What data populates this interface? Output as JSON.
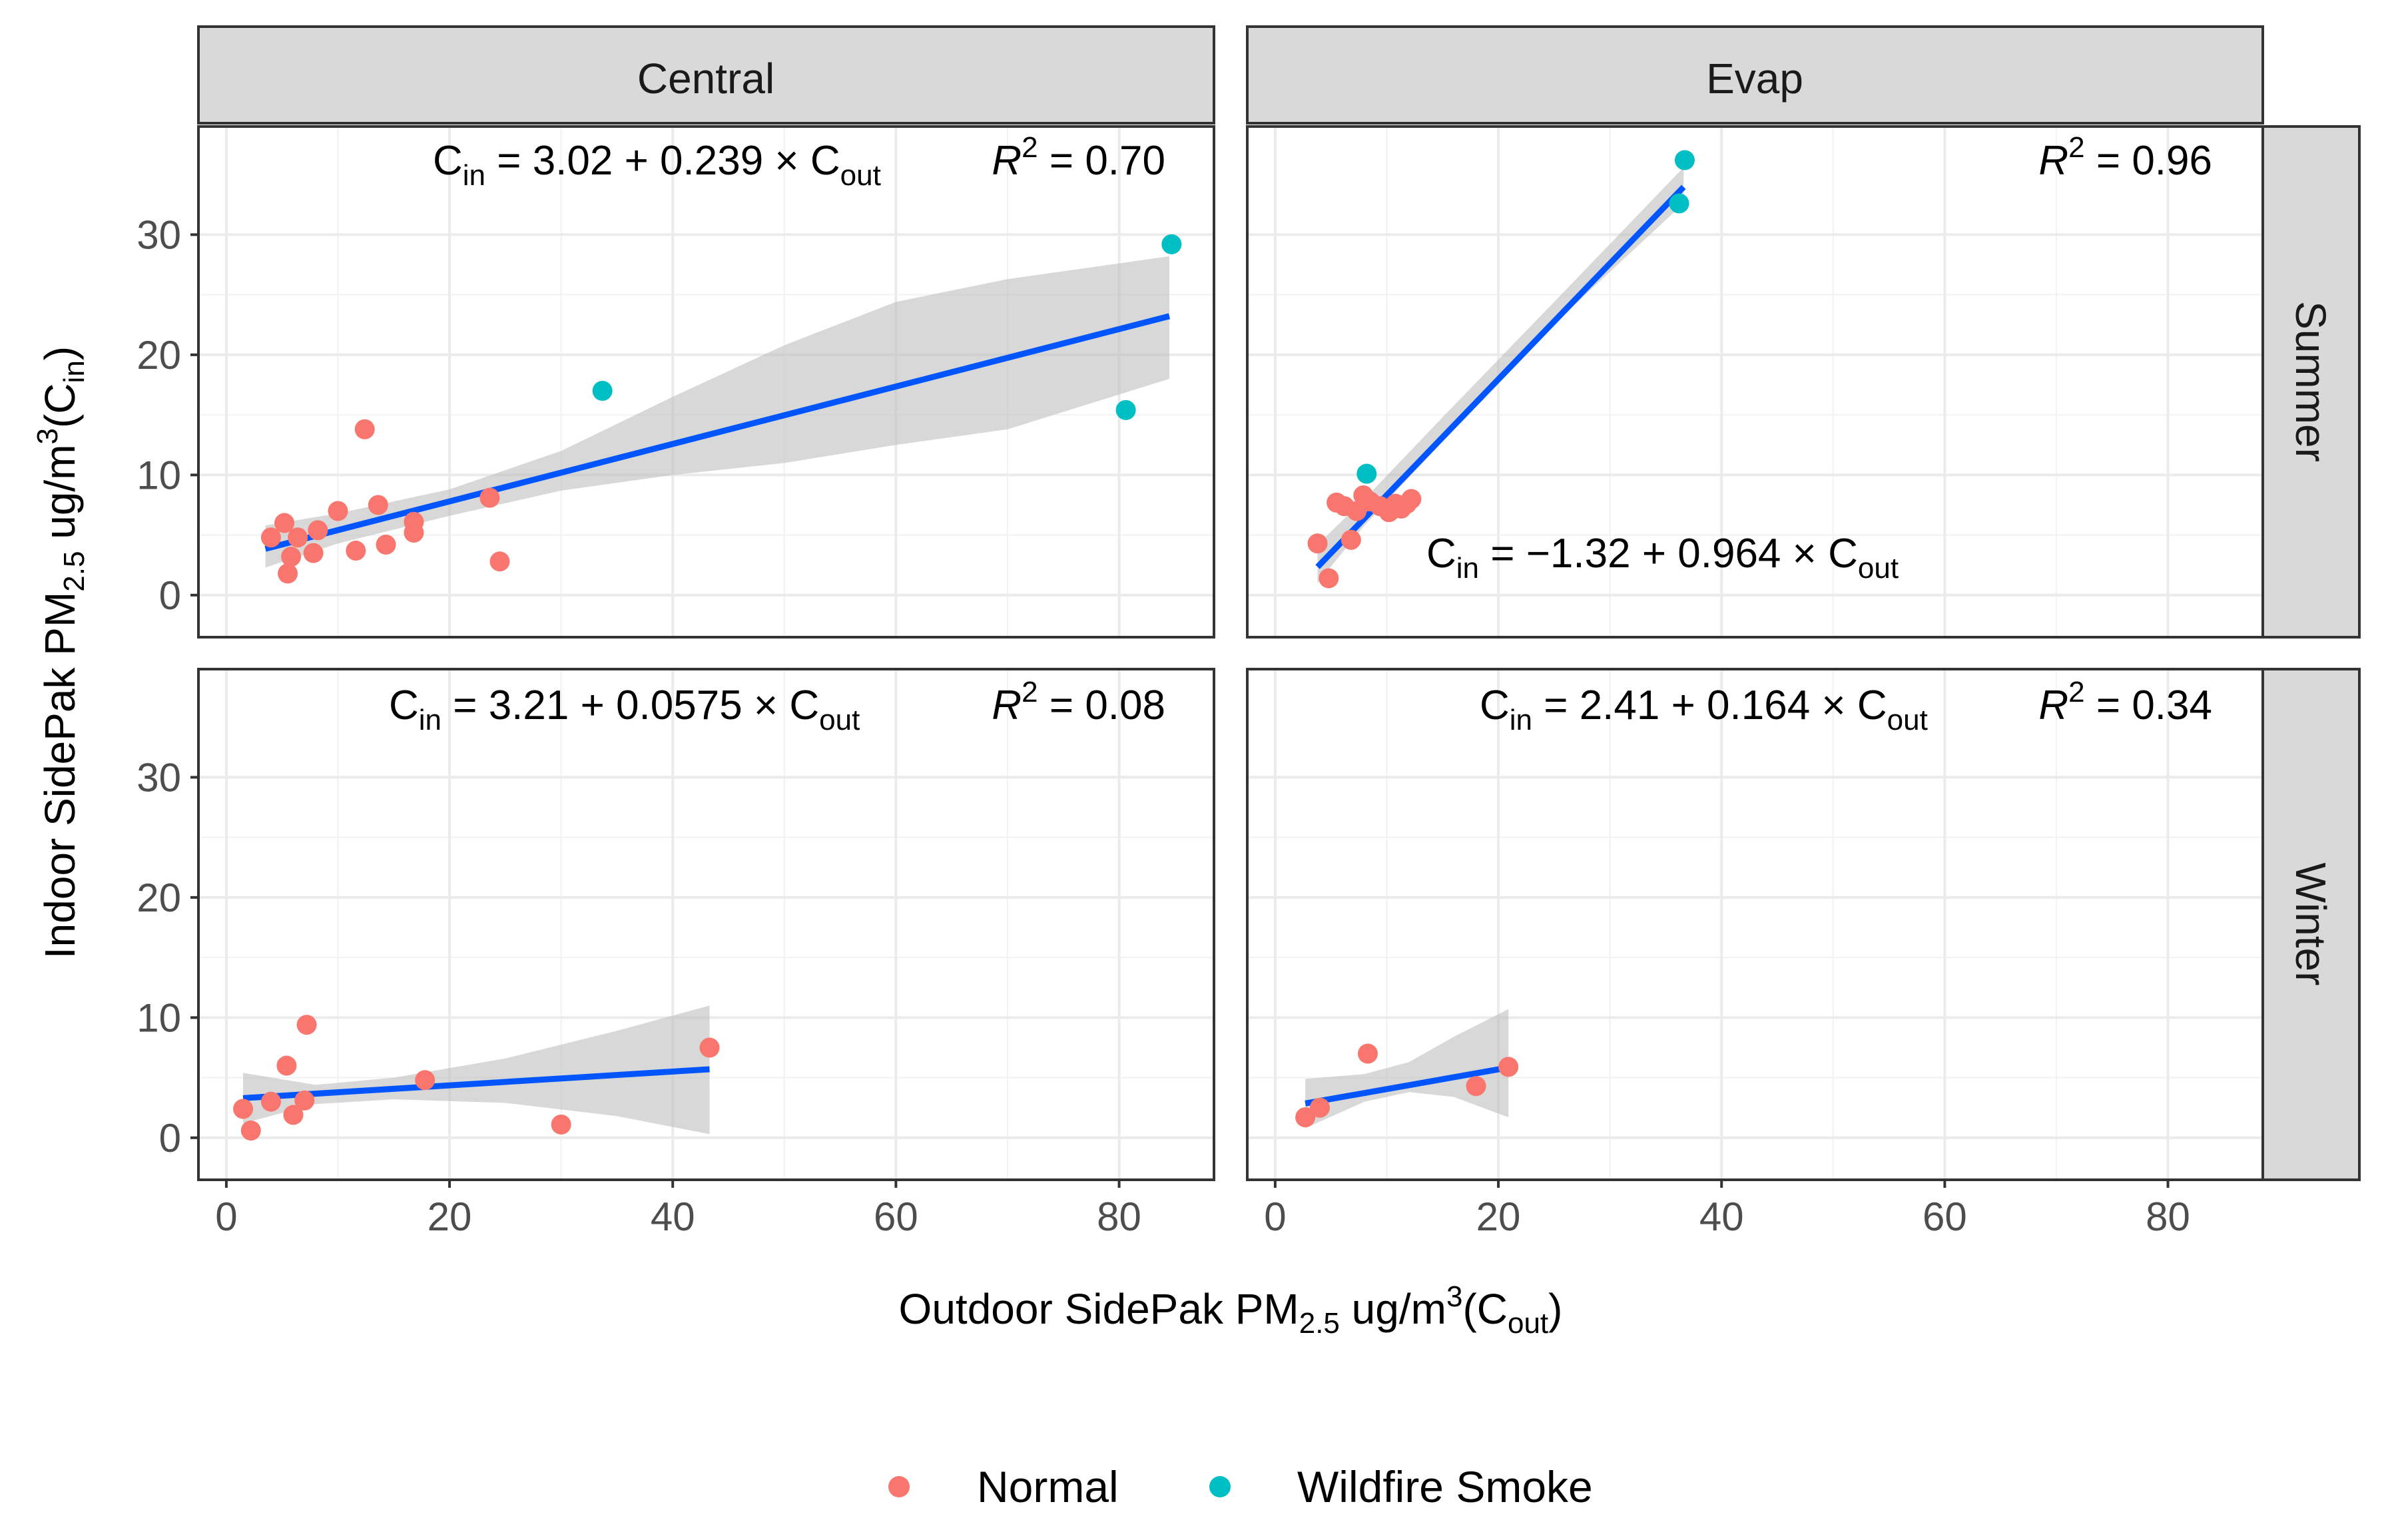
{
  "chart_data": {
    "type": "scatter",
    "facet_columns": [
      "Central",
      "Evap"
    ],
    "facet_rows": [
      "Summer",
      "Winter"
    ],
    "xlabel": {
      "pre": "Outdoor SidePak PM",
      "sub": "2.5",
      "mid": " ug/m",
      "sup": "3",
      "post1": "(C",
      "sub2": "out",
      "post2": ")"
    },
    "ylabel": {
      "pre": "Indoor SidePak PM",
      "sub": "2.5",
      "mid": " ug/m",
      "sup": "3",
      "post1": "(C",
      "sub2": "in",
      "post2": ")"
    },
    "xlim": [
      -2.5,
      88.5
    ],
    "ylim": [
      -3.5,
      39
    ],
    "x_ticks": [
      0,
      20,
      40,
      60,
      80
    ],
    "y_ticks": [
      0,
      10,
      20,
      30
    ],
    "x_tick_labels": [
      "0",
      "20",
      "40",
      "60",
      "80"
    ],
    "y_tick_labels": [
      "0",
      "10",
      "20",
      "30"
    ],
    "grid": true,
    "legend": {
      "placement": "bottom",
      "entries": [
        {
          "key": "normal",
          "label": "Normal",
          "color": "#F8766D"
        },
        {
          "key": "smoke",
          "label": "Wildfire Smoke",
          "color": "#00BFC4"
        }
      ]
    },
    "fit_color": "#0055FF",
    "band_color": "#BEBEBE",
    "panels": [
      {
        "col": "Central",
        "row": "Summer",
        "annotation": {
          "intercept": "3.02",
          "slope": "0.239",
          "r2": "0.70"
        },
        "fit": {
          "intercept": 3.02,
          "slope": 0.239,
          "x_range": [
            3.5,
            84.5
          ]
        },
        "band": [
          [
            3.5,
            2.3,
            5.8
          ],
          [
            10,
            4.3,
            6.8
          ],
          [
            20,
            6.6,
            8.8
          ],
          [
            30,
            8.7,
            12.0
          ],
          [
            40,
            10.0,
            16.5
          ],
          [
            50,
            11.0,
            20.8
          ],
          [
            60,
            12.5,
            24.4
          ],
          [
            70,
            13.8,
            26.3
          ],
          [
            84.5,
            18.0,
            28.2
          ]
        ],
        "points": [
          {
            "x": 4,
            "y": 4.8,
            "group": "normal"
          },
          {
            "x": 5.2,
            "y": 6.0,
            "group": "normal"
          },
          {
            "x": 5.5,
            "y": 1.8,
            "group": "normal"
          },
          {
            "x": 5.8,
            "y": 3.2,
            "group": "normal"
          },
          {
            "x": 6.4,
            "y": 4.8,
            "group": "normal"
          },
          {
            "x": 7.8,
            "y": 3.5,
            "group": "normal"
          },
          {
            "x": 8.2,
            "y": 5.4,
            "group": "normal"
          },
          {
            "x": 10,
            "y": 7.0,
            "group": "normal"
          },
          {
            "x": 11.6,
            "y": 3.7,
            "group": "normal"
          },
          {
            "x": 12.4,
            "y": 13.8,
            "group": "normal"
          },
          {
            "x": 13.6,
            "y": 7.5,
            "group": "normal"
          },
          {
            "x": 14.3,
            "y": 4.2,
            "group": "normal"
          },
          {
            "x": 16.8,
            "y": 6.1,
            "group": "normal"
          },
          {
            "x": 16.8,
            "y": 5.2,
            "group": "normal"
          },
          {
            "x": 23.6,
            "y": 8.1,
            "group": "normal"
          },
          {
            "x": 24.5,
            "y": 2.8,
            "group": "normal"
          },
          {
            "x": 33.7,
            "y": 17.0,
            "group": "smoke"
          },
          {
            "x": 80.6,
            "y": 15.4,
            "group": "smoke"
          },
          {
            "x": 84.7,
            "y": 29.2,
            "group": "smoke"
          }
        ]
      },
      {
        "col": "Evap",
        "row": "Summer",
        "annotation": {
          "intercept": "−1.32",
          "slope": "0.964",
          "r2": "0.96"
        },
        "fit": {
          "intercept": -1.32,
          "slope": 0.964,
          "x_range": [
            3.8,
            36.6
          ]
        },
        "band": [
          [
            3.8,
            1.0,
            4.2
          ],
          [
            8,
            5.8,
            8.0
          ],
          [
            15,
            12.8,
            14.8
          ],
          [
            25,
            22.6,
            24.4
          ],
          [
            36.6,
            32.6,
            35.6
          ]
        ],
        "points": [
          {
            "x": 3.8,
            "y": 4.3,
            "group": "normal"
          },
          {
            "x": 4.8,
            "y": 1.4,
            "group": "normal"
          },
          {
            "x": 5.5,
            "y": 7.7,
            "group": "normal"
          },
          {
            "x": 6.2,
            "y": 7.4,
            "group": "normal"
          },
          {
            "x": 6.8,
            "y": 4.6,
            "group": "normal"
          },
          {
            "x": 7.3,
            "y": 7.0,
            "group": "normal"
          },
          {
            "x": 7.9,
            "y": 8.3,
            "group": "normal"
          },
          {
            "x": 8.5,
            "y": 7.8,
            "group": "normal"
          },
          {
            "x": 9.4,
            "y": 7.4,
            "group": "normal"
          },
          {
            "x": 10.2,
            "y": 6.9,
            "group": "normal"
          },
          {
            "x": 10.8,
            "y": 7.6,
            "group": "normal"
          },
          {
            "x": 11.3,
            "y": 7.2,
            "group": "normal"
          },
          {
            "x": 11.8,
            "y": 7.6,
            "group": "normal"
          },
          {
            "x": 12.2,
            "y": 8.0,
            "group": "normal"
          },
          {
            "x": 8.2,
            "y": 10.1,
            "group": "smoke"
          },
          {
            "x": 36.7,
            "y": 36.2,
            "group": "smoke"
          },
          {
            "x": 36.2,
            "y": 32.6,
            "group": "smoke"
          }
        ]
      },
      {
        "col": "Central",
        "row": "Winter",
        "annotation": {
          "intercept": "3.21",
          "slope": "0.0575",
          "r2": "0.08"
        },
        "fit": {
          "intercept": 3.21,
          "slope": 0.0575,
          "x_range": [
            1.5,
            43.3
          ]
        },
        "band": [
          [
            1.5,
            1.2,
            5.4
          ],
          [
            8,
            2.8,
            4.4
          ],
          [
            15,
            3.2,
            5.0
          ],
          [
            25,
            2.9,
            6.6
          ],
          [
            35,
            1.8,
            8.9
          ],
          [
            43.3,
            0.3,
            11.0
          ]
        ],
        "points": [
          {
            "x": 1.5,
            "y": 2.4,
            "group": "normal"
          },
          {
            "x": 2.2,
            "y": 0.6,
            "group": "normal"
          },
          {
            "x": 4.0,
            "y": 3.0,
            "group": "normal"
          },
          {
            "x": 5.4,
            "y": 6.0,
            "group": "normal"
          },
          {
            "x": 6.0,
            "y": 1.9,
            "group": "normal"
          },
          {
            "x": 7.0,
            "y": 3.1,
            "group": "normal"
          },
          {
            "x": 7.2,
            "y": 9.4,
            "group": "normal"
          },
          {
            "x": 17.8,
            "y": 4.8,
            "group": "normal"
          },
          {
            "x": 30.0,
            "y": 1.1,
            "group": "normal"
          },
          {
            "x": 43.3,
            "y": 7.5,
            "group": "normal"
          }
        ]
      },
      {
        "col": "Evap",
        "row": "Winter",
        "annotation": {
          "intercept": "2.41",
          "slope": "0.164",
          "r2": "0.34"
        },
        "fit": {
          "intercept": 2.41,
          "slope": 0.164,
          "x_range": [
            2.7,
            20.9
          ]
        },
        "band": [
          [
            2.7,
            0.8,
            4.9
          ],
          [
            8,
            3.0,
            5.3
          ],
          [
            12,
            3.8,
            6.3
          ],
          [
            16,
            3.4,
            8.4
          ],
          [
            20.9,
            1.7,
            10.7
          ]
        ],
        "points": [
          {
            "x": 2.7,
            "y": 1.7,
            "group": "normal"
          },
          {
            "x": 4.0,
            "y": 2.5,
            "group": "normal"
          },
          {
            "x": 8.3,
            "y": 7.0,
            "group": "normal"
          },
          {
            "x": 18.0,
            "y": 4.3,
            "group": "normal"
          },
          {
            "x": 20.9,
            "y": 5.9,
            "group": "normal"
          }
        ]
      }
    ]
  }
}
